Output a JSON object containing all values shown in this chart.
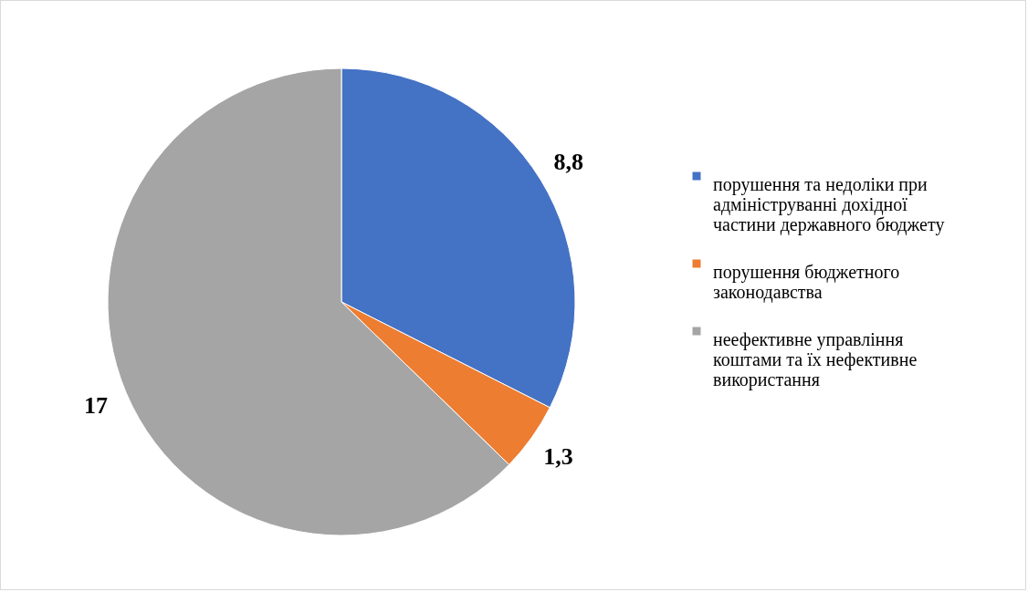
{
  "chart_data": {
    "type": "pie",
    "categories": [
      "порушення та недоліки при адмініструванні дохідної частини державного бюджету",
      "порушення бюджетного законодавства",
      "неефективне управління коштами та їх нефективне використання"
    ],
    "values": [
      8.8,
      1.3,
      17
    ],
    "colors": [
      "#4472c4",
      "#ed7d31",
      "#a5a5a5"
    ],
    "value_labels": [
      "8,8",
      "1,3",
      "17"
    ],
    "legend": "right"
  }
}
